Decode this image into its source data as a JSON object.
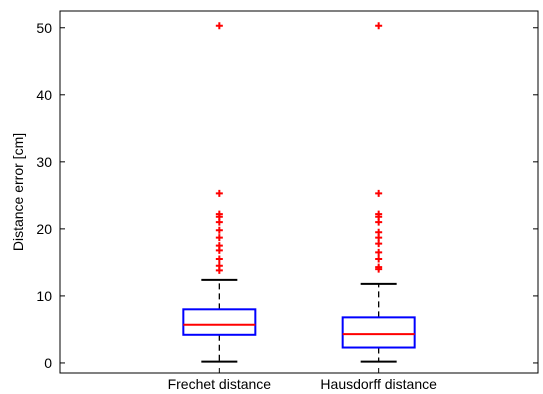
{
  "chart_data": {
    "type": "box",
    "title": "",
    "xlabel": "",
    "ylabel": "Distance error [cm]",
    "ylim": [
      -1.5,
      52.5
    ],
    "yticks": [
      0,
      10,
      20,
      30,
      40,
      50
    ],
    "grid": false,
    "categories": [
      "Frechet distance",
      "Hausdorff distance"
    ],
    "boxes": [
      {
        "name": "Frechet distance",
        "whisker_low": 0.2,
        "q1": 4.2,
        "median": 5.7,
        "q3": 8.0,
        "whisker_high": 12.4,
        "outliers": [
          13.8,
          14.5,
          15.5,
          16.8,
          17.5,
          18.7,
          19.8,
          21.0,
          21.8,
          22.2,
          25.3,
          50.3
        ]
      },
      {
        "name": "Hausdorff distance",
        "whisker_low": 0.2,
        "q1": 2.3,
        "median": 4.3,
        "q3": 6.8,
        "whisker_high": 11.8,
        "outliers": [
          14.0,
          14.3,
          15.5,
          16.5,
          17.8,
          18.7,
          19.5,
          21.0,
          21.8,
          22.2,
          25.3,
          50.3
        ]
      }
    ],
    "colors": {
      "box": "#0000ff",
      "median": "#ff0000",
      "whisker": "#000000",
      "outlier": "#ff0000",
      "axis": "#000000"
    }
  }
}
